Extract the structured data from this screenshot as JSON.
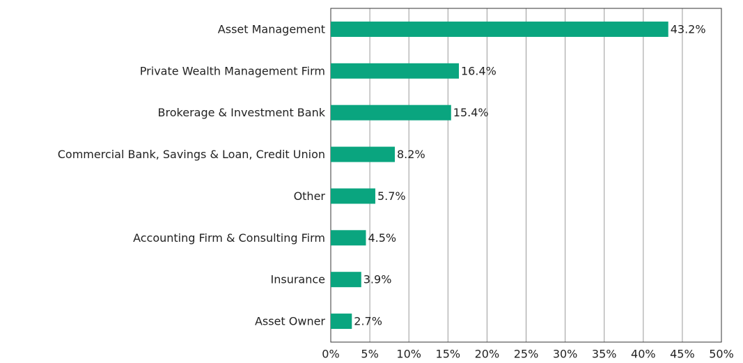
{
  "chart_data": {
    "type": "bar",
    "orientation": "horizontal",
    "categories": [
      "Asset Management",
      "Private Wealth Management Firm",
      "Brokerage & Investment Bank",
      "Commercial Bank, Savings & Loan, Credit Union",
      "Other",
      "Accounting Firm & Consulting Firm",
      "Insurance",
      "Asset Owner"
    ],
    "values": [
      43.2,
      16.4,
      15.4,
      8.2,
      5.7,
      4.5,
      3.9,
      2.7
    ],
    "value_labels": [
      "43.2%",
      "16.4%",
      "15.4%",
      "8.2%",
      "5.7%",
      "4.5%",
      "3.9%",
      "2.7%"
    ],
    "color": "#0aa57f",
    "xlim": [
      0,
      50
    ],
    "xticks": [
      {
        "value": 0,
        "label": "0%"
      },
      {
        "value": 5,
        "label": "5%"
      },
      {
        "value": 10,
        "label": "10%"
      },
      {
        "value": 15,
        "label": "15%"
      },
      {
        "value": 20,
        "label": "20%"
      },
      {
        "value": 25,
        "label": "25%"
      },
      {
        "value": 30,
        "label": "30%"
      },
      {
        "value": 35,
        "label": "35%"
      },
      {
        "value": 40,
        "label": "40%"
      },
      {
        "value": 45,
        "label": "45%"
      },
      {
        "value": 50,
        "label": "50%"
      }
    ],
    "grid": true
  }
}
